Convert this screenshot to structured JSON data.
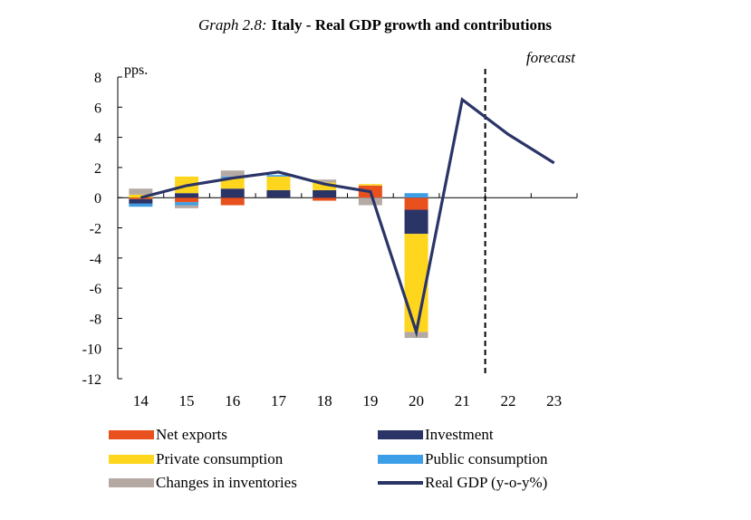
{
  "chart_data": {
    "type": "bar",
    "title_prefix": "Graph 2.8:",
    "title": "Italy - Real GDP growth and contributions",
    "ylabel": "pps.",
    "forecast_label": "forecast",
    "forecast_after": "21",
    "ylim": [
      -12,
      8
    ],
    "yticks": [
      8,
      6,
      4,
      2,
      0,
      -2,
      -4,
      -6,
      -8,
      -10,
      -12
    ],
    "categories": [
      "14",
      "15",
      "16",
      "17",
      "18",
      "19",
      "20",
      "21",
      "22",
      "23"
    ],
    "stacked": true,
    "legend_position": "bottom",
    "series": [
      {
        "name": "Net exports",
        "color": "#e8501e",
        "values": [
          -0.1,
          -0.3,
          -0.5,
          0.0,
          -0.2,
          0.8,
          -0.8,
          null,
          null,
          null
        ]
      },
      {
        "name": "Investment",
        "color": "#2b3467",
        "values": [
          -0.3,
          0.3,
          0.6,
          0.5,
          0.5,
          0.0,
          -1.6,
          null,
          null,
          null
        ]
      },
      {
        "name": "Private consumption",
        "color": "#ffd61e",
        "values": [
          0.2,
          1.1,
          0.7,
          0.9,
          0.5,
          0.1,
          -6.5,
          null,
          null,
          null
        ]
      },
      {
        "name": "Public consumption",
        "color": "#3d9ee8",
        "values": [
          -0.2,
          -0.2,
          0.1,
          0.1,
          0.0,
          0.0,
          0.3,
          null,
          null,
          null
        ]
      },
      {
        "name": "Changes in inventories",
        "color": "#b5aaa3",
        "values": [
          0.4,
          -0.2,
          0.4,
          0.0,
          0.2,
          -0.5,
          -0.4,
          null,
          null,
          null
        ]
      }
    ],
    "line_series": {
      "name": "Real GDP (y-o-y%)",
      "color": "#2b3467",
      "values": [
        0.0,
        0.8,
        1.3,
        1.7,
        0.9,
        0.4,
        -8.9,
        6.5,
        4.2,
        2.3
      ]
    }
  }
}
